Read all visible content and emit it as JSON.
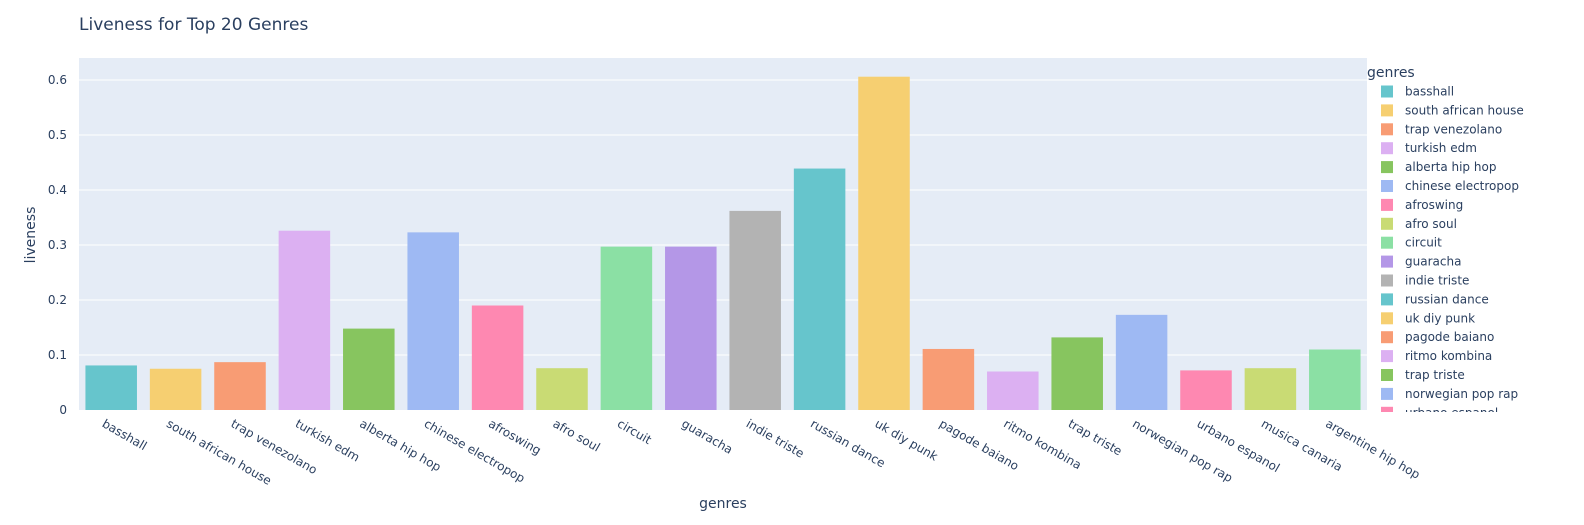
{
  "chart_data": {
    "type": "bar",
    "title": "Liveness for Top 20 Genres",
    "xlabel": "genres",
    "ylabel": "liveness",
    "ylim": [
      0,
      0.64
    ],
    "yticks": [
      "0",
      "0.1",
      "0.2",
      "0.3",
      "0.4",
      "0.5",
      "0.6"
    ],
    "grid": true,
    "legend_title": "genres",
    "legend_position": "right",
    "categories": [
      "basshall",
      "south african house",
      "trap venezolano",
      "turkish edm",
      "alberta hip hop",
      "chinese electropop",
      "afroswing",
      "afro soul",
      "circuit",
      "guaracha",
      "indie triste",
      "russian dance",
      "uk diy punk",
      "pagode baiano",
      "ritmo kombina",
      "trap triste",
      "norwegian pop rap",
      "urbano espanol",
      "musica canaria",
      "argentine hip hop"
    ],
    "values": [
      0.081,
      0.075,
      0.087,
      0.326,
      0.148,
      0.323,
      0.19,
      0.076,
      0.297,
      0.297,
      0.362,
      0.439,
      0.606,
      0.111,
      0.07,
      0.132,
      0.173,
      0.072,
      0.076,
      0.11
    ],
    "colors": [
      "#66c5cc",
      "#f6cf71",
      "#f89c74",
      "#dcb0f2",
      "#87c55f",
      "#9eb9f3",
      "#fe88b1",
      "#c9db74",
      "#8be0a4",
      "#b497e7",
      "#b3b3b3",
      "#66c5cc",
      "#f6cf71",
      "#f89c74",
      "#dcb0f2",
      "#87c55f",
      "#9eb9f3",
      "#fe88b1",
      "#c9db74",
      "#8be0a4"
    ],
    "plot_background": "#e5ecf6",
    "text_color": "#2a3f5f"
  }
}
